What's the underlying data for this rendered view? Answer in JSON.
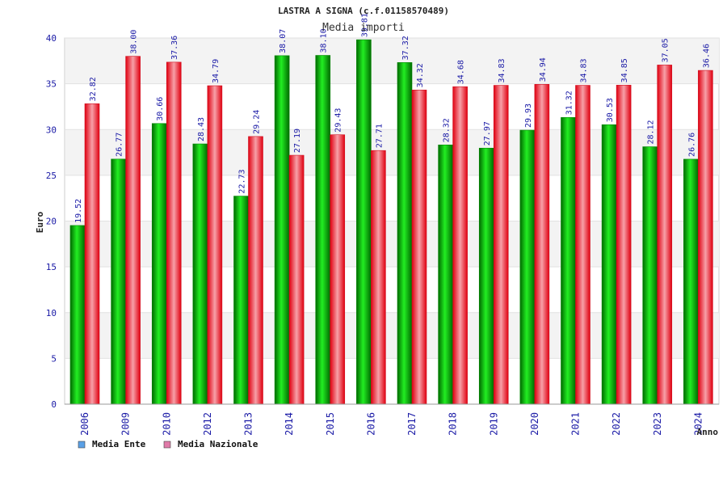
{
  "chart_data": {
    "type": "bar",
    "title": "LASTRA A SIGNA (c.f.01158570489)",
    "subtitle": "Media importi",
    "xlabel": "Anno",
    "ylabel": "Euro",
    "ylim": [
      0,
      40
    ],
    "yticks": [
      0,
      5,
      10,
      15,
      20,
      25,
      30,
      35,
      40
    ],
    "grid": true,
    "legend_position": "bottom-left",
    "categories": [
      "2006",
      "2009",
      "2010",
      "2012",
      "2013",
      "2014",
      "2015",
      "2016",
      "2017",
      "2018",
      "2019",
      "2020",
      "2021",
      "2022",
      "2023",
      "2024"
    ],
    "series": [
      {
        "name": "Media Ente",
        "color": "#00c000",
        "legend_color": "#5aa0e6",
        "values": [
          19.52,
          26.77,
          30.66,
          28.43,
          22.73,
          38.07,
          38.1,
          39.81,
          37.32,
          28.32,
          27.97,
          29.93,
          31.32,
          30.53,
          28.12,
          26.76
        ],
        "labels": [
          "19.52",
          "26.77",
          "30.66",
          "28.43",
          "22.73",
          "38.07",
          "38.10",
          "39.81",
          "37.32",
          "28.32",
          "27.97",
          "29.93",
          "31.32",
          "30.53",
          "28.12",
          "26.76"
        ]
      },
      {
        "name": "Media Nazionale",
        "color": "#e8202a",
        "legend_color": "#e07aa8",
        "values": [
          32.82,
          38.0,
          37.36,
          34.79,
          29.24,
          27.19,
          29.43,
          27.71,
          34.32,
          34.68,
          34.83,
          34.94,
          34.83,
          34.85,
          37.05,
          36.46
        ],
        "labels": [
          "32.82",
          "38.00",
          "37.36",
          "34.79",
          "29.24",
          "27.19",
          "29.43",
          "27.71",
          "34.32",
          "34.68",
          "34.83",
          "34.94",
          "34.83",
          "34.85",
          "37.05",
          "36.46"
        ]
      }
    ]
  }
}
